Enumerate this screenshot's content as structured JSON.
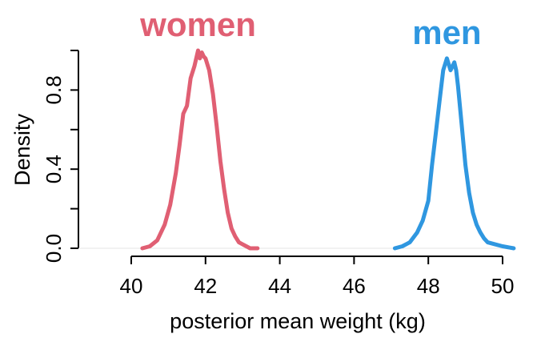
{
  "chart_data": {
    "type": "line",
    "xlabel": "posterior mean weight (kg)",
    "ylabel": "Density",
    "xlim": [
      40,
      50
    ],
    "ylim": [
      0,
      1.0
    ],
    "x_ticks": [
      "40",
      "42",
      "44",
      "46",
      "48",
      "50"
    ],
    "y_ticks": [
      "0.0",
      "0.4",
      "0.8"
    ],
    "grid": false,
    "legend": "direct labels above curves",
    "series": [
      {
        "name": "women",
        "color": "#e05f73",
        "x": [
          40.3,
          40.5,
          40.7,
          40.9,
          41.05,
          41.2,
          41.3,
          41.4,
          41.5,
          41.6,
          41.7,
          41.8,
          41.85,
          41.9,
          41.95,
          42.0,
          42.1,
          42.2,
          42.3,
          42.4,
          42.5,
          42.6,
          42.7,
          42.8,
          42.9,
          43.0,
          43.1,
          43.2,
          43.4
        ],
        "y": [
          0.0,
          0.01,
          0.04,
          0.12,
          0.22,
          0.38,
          0.52,
          0.68,
          0.72,
          0.86,
          0.92,
          1.0,
          0.96,
          0.99,
          0.97,
          0.96,
          0.9,
          0.78,
          0.62,
          0.44,
          0.3,
          0.18,
          0.1,
          0.06,
          0.03,
          0.02,
          0.01,
          0.0,
          0.0
        ]
      },
      {
        "name": "men",
        "color": "#2f97e0",
        "x": [
          47.1,
          47.3,
          47.5,
          47.7,
          47.85,
          48.0,
          48.1,
          48.2,
          48.3,
          48.4,
          48.5,
          48.6,
          48.65,
          48.7,
          48.75,
          48.8,
          48.9,
          49.0,
          49.1,
          49.2,
          49.3,
          49.4,
          49.5,
          49.6,
          49.8,
          50.0,
          50.3
        ],
        "y": [
          0.0,
          0.01,
          0.03,
          0.08,
          0.14,
          0.24,
          0.42,
          0.58,
          0.74,
          0.9,
          0.96,
          0.9,
          0.92,
          0.94,
          0.9,
          0.82,
          0.62,
          0.42,
          0.28,
          0.18,
          0.12,
          0.08,
          0.05,
          0.03,
          0.02,
          0.01,
          0.0
        ]
      }
    ]
  }
}
